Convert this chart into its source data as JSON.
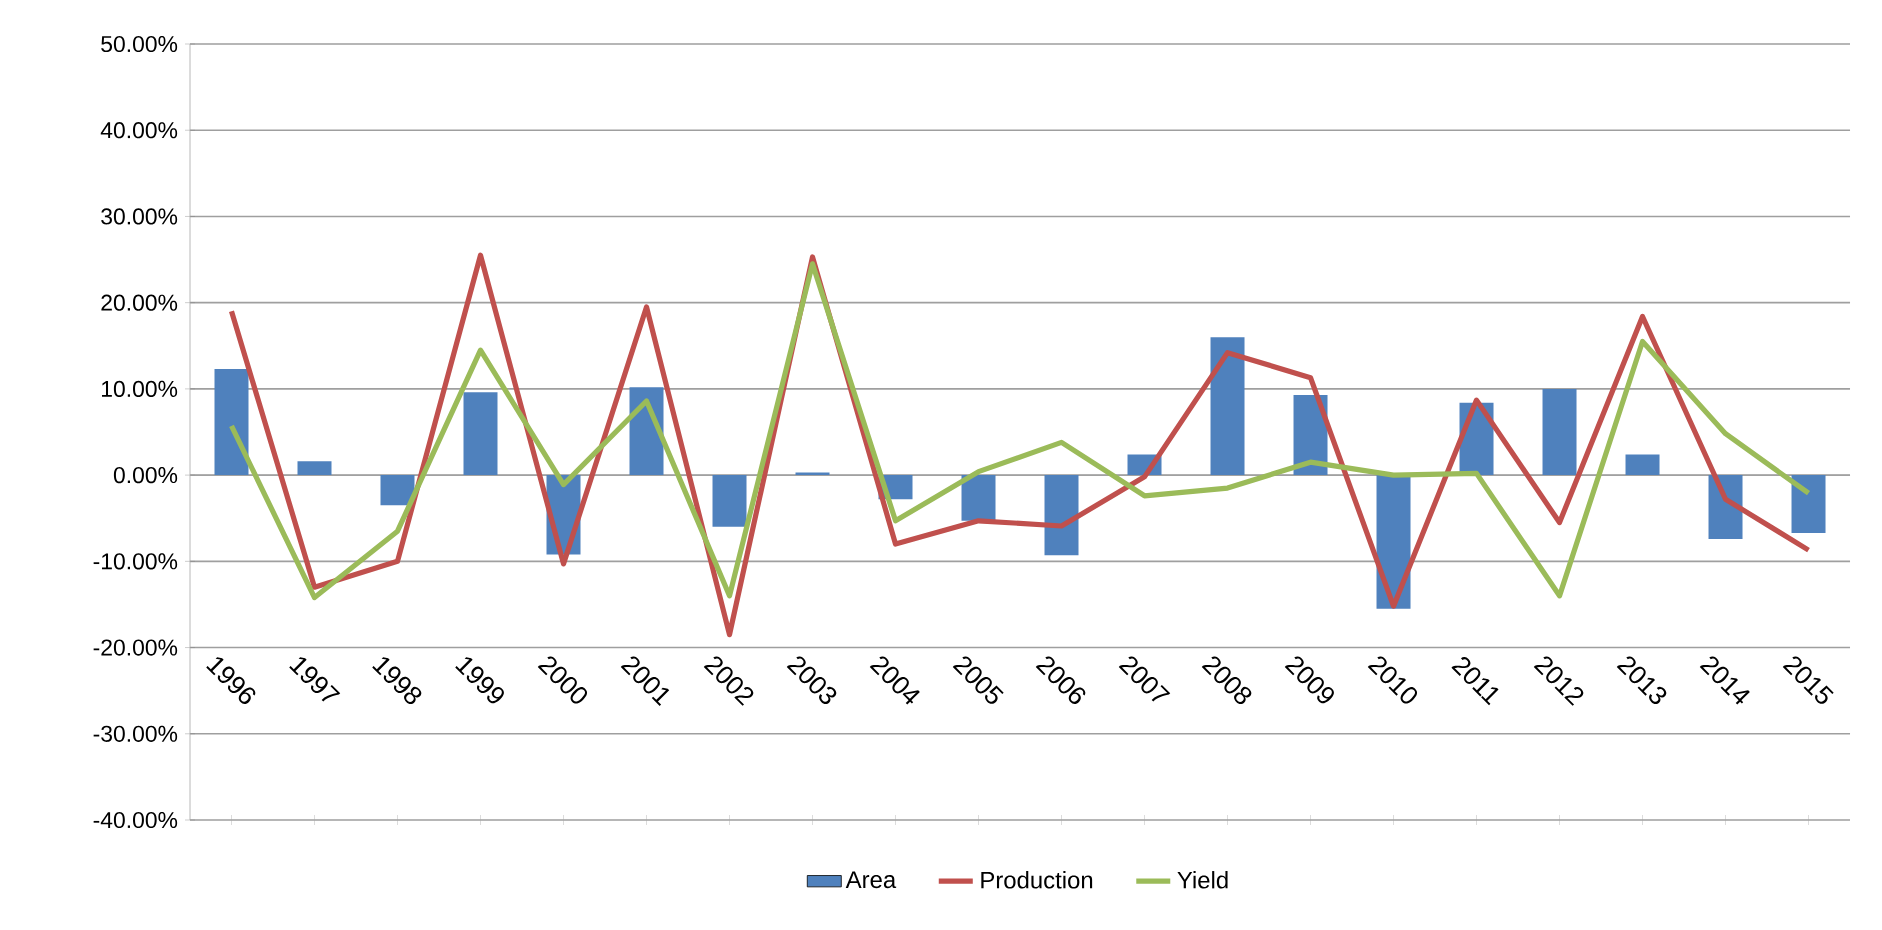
{
  "chart_data": {
    "type": "bar",
    "categories": [
      "1996",
      "1997",
      "1998",
      "1999",
      "2000",
      "2001",
      "2002",
      "2003",
      "2004",
      "2005",
      "2006",
      "2007",
      "2008",
      "2009",
      "2010",
      "2011",
      "2012",
      "2013",
      "2014",
      "2015"
    ],
    "series": [
      {
        "name": "Area",
        "color": "#4f81bd",
        "values": [
          12.3,
          1.6,
          -3.5,
          9.6,
          -9.2,
          10.2,
          -6.0,
          0.3,
          -2.8,
          -5.3,
          -9.3,
          2.4,
          16.0,
          9.3,
          -15.5,
          8.4,
          10.0,
          2.4,
          -7.4,
          -6.7
        ]
      },
      {
        "name": "Production",
        "type": "line",
        "color": "#c0504d",
        "values": [
          19.0,
          -13.0,
          -10.0,
          25.5,
          -10.3,
          19.5,
          -18.5,
          25.3,
          -8.0,
          -5.3,
          -5.9,
          -0.2,
          14.2,
          11.3,
          -15.2,
          8.7,
          -5.5,
          18.4,
          -2.8,
          -8.7
        ]
      },
      {
        "name": "Yield",
        "type": "line",
        "color": "#9bbb59",
        "values": [
          5.7,
          -14.2,
          -6.5,
          14.5,
          -1.1,
          8.6,
          -14.0,
          24.5,
          -5.3,
          0.4,
          3.8,
          -2.4,
          -1.5,
          1.5,
          0.0,
          0.2,
          -14.0,
          15.5,
          4.8,
          -2.1
        ]
      }
    ],
    "ylim": [
      -40,
      50
    ],
    "yticks": [
      {
        "value": -40,
        "label": "-40.00%"
      },
      {
        "value": -30,
        "label": "-30.00%"
      },
      {
        "value": -20,
        "label": "-20.00%"
      },
      {
        "value": -10,
        "label": "-10.00%"
      },
      {
        "value": 0,
        "label": "0.00%"
      },
      {
        "value": 10,
        "label": "10.00%"
      },
      {
        "value": 20,
        "label": "20.00%"
      },
      {
        "value": 30,
        "label": "30.00%"
      },
      {
        "value": 40,
        "label": "40.00%"
      },
      {
        "value": 50,
        "label": "50.00%"
      }
    ],
    "grid": "y",
    "legend": "bottom",
    "marker": "none",
    "line_style": "solid"
  }
}
